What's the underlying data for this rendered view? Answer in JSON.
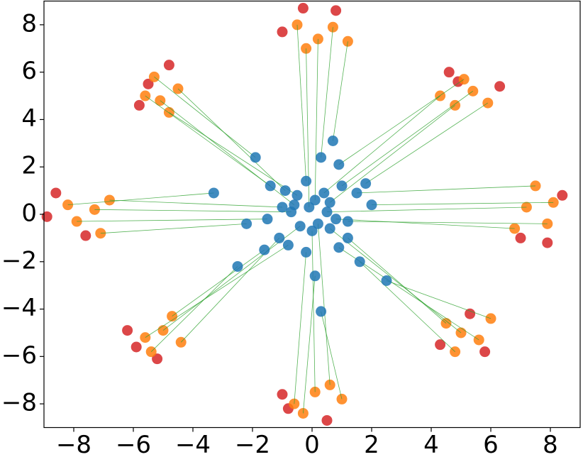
{
  "chart_data": {
    "type": "scatter",
    "xlim": [
      -9,
      9
    ],
    "ylim": [
      -9,
      9
    ],
    "xticks": [
      {
        "value": -8,
        "label": "−8"
      },
      {
        "value": -6,
        "label": "−6"
      },
      {
        "value": -4,
        "label": "−4"
      },
      {
        "value": -2,
        "label": "−2"
      },
      0,
      2,
      4,
      6,
      8
    ],
    "yticks": [
      {
        "value": -8,
        "label": "−8"
      },
      {
        "value": -6,
        "label": "−6"
      },
      {
        "value": -4,
        "label": "−4"
      },
      {
        "value": -2,
        "label": "−2"
      },
      0,
      2,
      4,
      6,
      8
    ],
    "link_color": "#2ca02c",
    "series": [
      {
        "color": "#d62728",
        "x": [
          7.9,
          8.4,
          7.0,
          4.6,
          6.3,
          4.9,
          -1.0,
          0.8,
          -0.3,
          -5.8,
          -4.8,
          -5.5,
          -8.6,
          -7.6,
          -8.9,
          -5.9,
          -5.2,
          -6.2,
          -1.0,
          0.5,
          -0.8,
          5.3,
          5.8,
          4.3
        ],
        "y": [
          -1.2,
          0.8,
          -1.0,
          6.0,
          5.4,
          5.6,
          7.7,
          8.6,
          8.7,
          4.6,
          6.3,
          5.5,
          0.9,
          -0.9,
          -0.1,
          -5.6,
          -6.1,
          -4.9,
          -7.6,
          -8.7,
          -8.2,
          -4.2,
          -5.8,
          -5.5
        ]
      },
      {
        "color": "#ff7f0e",
        "x": [
          7.2,
          7.9,
          6.8,
          8.1,
          7.5,
          4.8,
          5.4,
          4.3,
          5.9,
          5.1,
          0.2,
          -0.5,
          0.7,
          -0.2,
          1.2,
          -5.1,
          -4.5,
          -5.6,
          -4.8,
          -5.3,
          -7.3,
          -7.9,
          -6.8,
          -7.1,
          -8.2,
          -5.0,
          -4.4,
          -5.6,
          -4.7,
          -5.4,
          0.1,
          -0.6,
          0.6,
          -0.3,
          1.0,
          5.0,
          4.5,
          5.6,
          4.8,
          6.0
        ],
        "y": [
          0.3,
          -0.4,
          -0.6,
          0.5,
          1.2,
          4.6,
          5.2,
          5.0,
          4.7,
          5.7,
          7.4,
          8.0,
          7.9,
          7.0,
          7.3,
          4.8,
          5.3,
          5.0,
          4.3,
          5.8,
          0.2,
          -0.3,
          0.6,
          -0.8,
          0.4,
          -4.9,
          -5.4,
          -5.2,
          -4.3,
          -5.8,
          -7.5,
          -8.0,
          -7.2,
          -8.4,
          -7.8,
          -5.0,
          -4.6,
          -5.3,
          -5.8,
          -4.4
        ]
      },
      {
        "color": "#1f77b4",
        "x": [
          0.5,
          1.2,
          0.8,
          2.0,
          1.5,
          0.6,
          1.0,
          0.4,
          1.8,
          0.9,
          0.1,
          -0.2,
          0.3,
          -0.1,
          0.7,
          -0.6,
          -0.9,
          -1.4,
          -0.5,
          -1.9,
          -0.7,
          -1.5,
          -1.0,
          -2.2,
          -3.3,
          -0.4,
          -1.1,
          -0.8,
          -1.6,
          -2.5,
          0.0,
          -0.2,
          0.2,
          0.1,
          0.3,
          0.6,
          1.2,
          0.9,
          1.6,
          2.5
        ],
        "y": [
          0.1,
          -0.3,
          -0.2,
          0.4,
          0.9,
          0.5,
          1.2,
          0.9,
          1.3,
          2.1,
          0.6,
          1.4,
          2.4,
          0.3,
          3.1,
          0.4,
          1.0,
          1.2,
          0.8,
          2.4,
          0.1,
          -0.2,
          0.3,
          -0.4,
          0.9,
          -0.5,
          -1.0,
          -1.3,
          -1.5,
          -2.2,
          -0.7,
          -1.6,
          -0.4,
          -2.6,
          -4.1,
          -0.6,
          -1.0,
          -1.4,
          -2.0,
          -2.8
        ]
      }
    ]
  }
}
